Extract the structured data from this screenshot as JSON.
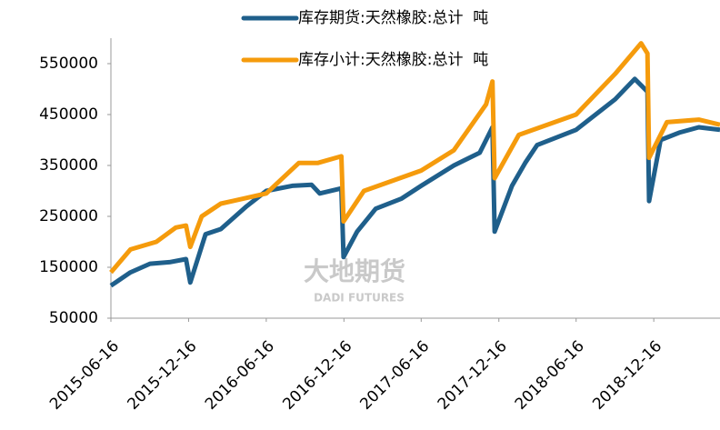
{
  "chart_data": {
    "type": "line",
    "legend": "top",
    "watermark": [
      "大地期货",
      "DADI FUTURES"
    ],
    "xlim": [
      "2015-06-16",
      "2019-05-21"
    ],
    "xticks": [
      "2015-06-16",
      "2015-12-16",
      "2016-06-16",
      "2016-12-16",
      "2017-06-16",
      "2017-12-16",
      "2018-06-16",
      "2018-12-16"
    ],
    "ylim": [
      50000,
      600000
    ],
    "yticks": [
      50000,
      150000,
      250000,
      350000,
      450000,
      550000
    ],
    "series": [
      {
        "name": "库存期货:天然橡胶:总计  吨",
        "color": "#1f5f8b",
        "x": [
          "2015-06-16",
          "2015-08-01",
          "2015-09-16",
          "2015-11-01",
          "2015-12-10",
          "2015-12-20",
          "2016-01-25",
          "2016-03-01",
          "2016-05-01",
          "2016-06-16",
          "2016-08-16",
          "2016-10-01",
          "2016-10-20",
          "2016-12-10",
          "2016-12-15",
          "2017-01-16",
          "2017-03-01",
          "2017-05-01",
          "2017-06-16",
          "2017-09-01",
          "2017-11-01",
          "2017-12-01",
          "2017-12-06",
          "2018-01-16",
          "2018-02-16",
          "2018-03-16",
          "2018-06-16",
          "2018-09-16",
          "2018-11-01",
          "2018-12-01",
          "2018-12-05",
          "2019-01-01",
          "2019-02-16",
          "2019-04-01",
          "2019-05-21"
        ],
        "values": [
          114000,
          140000,
          157000,
          160000,
          166000,
          120000,
          215000,
          225000,
          270000,
          300000,
          310000,
          312000,
          295000,
          305000,
          170000,
          220000,
          265000,
          285000,
          310000,
          350000,
          375000,
          425000,
          220000,
          310000,
          355000,
          390000,
          420000,
          480000,
          520000,
          495000,
          280000,
          400000,
          415000,
          425000,
          420000
        ]
      },
      {
        "name": "库存小计:天然橡胶:总计  吨",
        "color": "#f59b0c",
        "x": [
          "2015-06-16",
          "2015-08-01",
          "2015-10-01",
          "2015-11-16",
          "2015-12-10",
          "2015-12-20",
          "2016-01-16",
          "2016-03-01",
          "2016-06-16",
          "2016-09-01",
          "2016-10-16",
          "2016-12-10",
          "2016-12-15",
          "2017-02-01",
          "2017-06-16",
          "2017-09-01",
          "2017-11-16",
          "2017-12-01",
          "2017-12-06",
          "2018-02-01",
          "2018-06-16",
          "2018-09-16",
          "2018-11-16",
          "2018-12-01",
          "2018-12-05",
          "2019-01-16",
          "2019-04-01",
          "2019-05-21"
        ],
        "values": [
          140000,
          185000,
          200000,
          228000,
          232000,
          190000,
          250000,
          275000,
          295000,
          355000,
          355000,
          368000,
          240000,
          300000,
          340000,
          380000,
          470000,
          515000,
          325000,
          410000,
          450000,
          530000,
          590000,
          570000,
          365000,
          435000,
          440000,
          430000
        ]
      }
    ]
  }
}
